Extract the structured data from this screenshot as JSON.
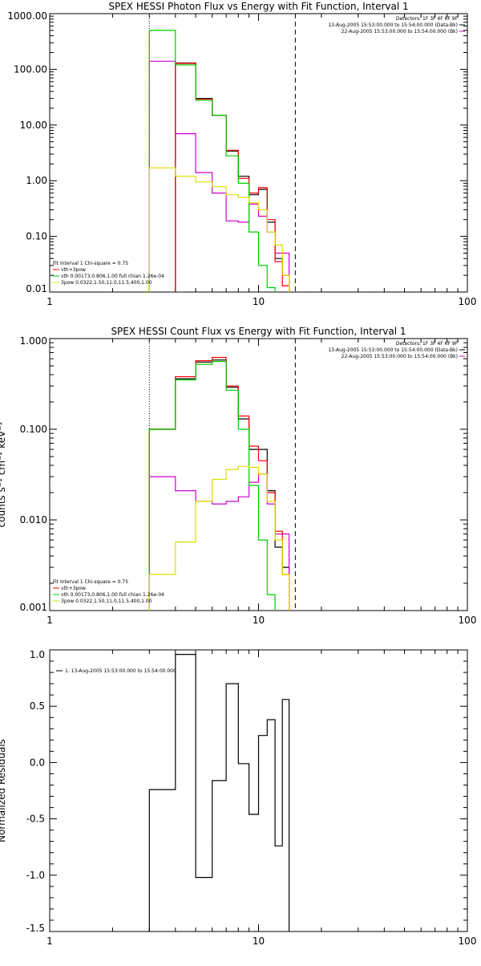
{
  "chart_data": [
    {
      "type": "line",
      "title": "SPEX HESSI Photon Flux vs Energy with Fit Function, Interval 1",
      "xlabel": "",
      "ylabel": "",
      "xscale": "log",
      "yscale": "log",
      "xlim": [
        1,
        100
      ],
      "ylim": [
        0.01,
        1000
      ],
      "xtick_labels": [
        "1",
        "10",
        "100"
      ],
      "ytick_labels": [
        "0.01",
        "0.10",
        "1.00",
        "10.00",
        "100.00",
        "1000.00"
      ],
      "header_text": [
        "Detectors: 1F 3F 4F 6F 9F",
        "13-Aug-2005 15:53:00.000 to 15:54:00.000 (Data-Bk)",
        "22-Aug-2005 15:53:00.000 to 15:54:00.000 (Bk)"
      ],
      "legend": [
        "Fit Interval 1   Chi-square = 0.75",
        "vth+3pow",
        "vth 0.00173,0.806,1.00   full chian 1.26e-04",
        "3pow 0.0322,1.50,11.0,11.5,400,1.00"
      ],
      "vlines": [
        3,
        15
      ],
      "bin_edges": [
        3.0,
        4.0,
        5.0,
        6.0,
        7.0,
        8.0,
        9.0,
        10.0,
        11.0,
        12.0,
        13.0,
        14.0,
        15.0
      ],
      "series": [
        {
          "name": "Data-Bk",
          "color": "#000000",
          "values": [
            null,
            130,
            30,
            15,
            3.4,
            1.2,
            0.56,
            0.7,
            0.18,
            0.04,
            0.02,
            null
          ]
        },
        {
          "name": "Bk",
          "color": "#cc00cc",
          "values": [
            140,
            7,
            1.4,
            0.6,
            0.19,
            0.18,
            0.38,
            0.23,
            0.12,
            0.05,
            0.05,
            null
          ]
        },
        {
          "name": "vth+3pow",
          "color": "#ff0000",
          "values": [
            null,
            128,
            29,
            15,
            3.5,
            1.1,
            0.6,
            0.75,
            0.2,
            0.035,
            0.013,
            null
          ]
        },
        {
          "name": "vth",
          "color": "#00cc00",
          "values": [
            500,
            120,
            28,
            15,
            2.8,
            0.9,
            0.12,
            0.03,
            0.012,
            null,
            null,
            null
          ]
        },
        {
          "name": "3pow",
          "color": "#dddd00",
          "values": [
            1.7,
            1.2,
            0.95,
            0.78,
            0.56,
            0.5,
            0.4,
            0.3,
            0.12,
            0.07,
            0.02,
            null
          ]
        }
      ]
    },
    {
      "type": "line",
      "title": "SPEX HESSI Count Flux vs Energy with Fit Function, Interval 1",
      "xlabel": "",
      "ylabel": "counts s⁻¹ cm⁻² keV⁻¹",
      "xscale": "log",
      "yscale": "log",
      "xlim": [
        1,
        100
      ],
      "ylim": [
        0.001,
        1
      ],
      "xtick_labels": [
        "1",
        "10",
        "100"
      ],
      "ytick_labels": [
        "0.001",
        "0.010",
        "0.100",
        "1.000"
      ],
      "header_text": [
        "Detectors: 1F 3F 4F 6F 9F",
        "13-Aug-2005 15:53:00.000 to 15:54:00.000 (Data-Bk)",
        "22-Aug-2005 15:53:00.000 to 15:54:00.000 (Bk)"
      ],
      "legend": [
        "Fit Interval 1   Chi-square = 0.75",
        "vth+3pow",
        "vth 0.00173,0.806,1.00   full chian 1.26e-04",
        "3pow 0.0322,1.50,11.0,11.5,400,1.00"
      ],
      "vlines": [
        3,
        15
      ],
      "bin_edges": [
        3.0,
        4.0,
        5.0,
        6.0,
        7.0,
        8.0,
        9.0,
        10.0,
        11.0,
        12.0,
        13.0,
        14.0,
        15.0
      ],
      "series": [
        {
          "name": "Data-Bk",
          "color": "#000000",
          "values": [
            0.1,
            0.36,
            0.55,
            0.58,
            0.29,
            0.13,
            0.06,
            0.06,
            0.021,
            0.005,
            0.003,
            null
          ]
        },
        {
          "name": "Bk",
          "color": "#cc00cc",
          "values": [
            0.03,
            0.021,
            0.016,
            0.015,
            0.016,
            0.018,
            0.026,
            0.032,
            0.015,
            0.007,
            0.007,
            null
          ]
        },
        {
          "name": "vth+3pow",
          "color": "#ff0000",
          "values": [
            0.1,
            0.38,
            0.57,
            0.62,
            0.3,
            0.14,
            0.065,
            0.045,
            0.02,
            0.0075,
            0.0025,
            null
          ]
        },
        {
          "name": "vth",
          "color": "#00cc00",
          "values": [
            0.1,
            0.35,
            0.52,
            0.56,
            0.27,
            0.1,
            0.024,
            0.006,
            0.0015,
            null,
            null,
            null
          ]
        },
        {
          "name": "3pow",
          "color": "#dddd00",
          "values": [
            0.0025,
            0.0057,
            0.016,
            0.028,
            0.036,
            0.039,
            0.038,
            0.032,
            0.016,
            0.006,
            0.0025,
            null
          ]
        }
      ]
    },
    {
      "type": "line",
      "title": "",
      "xlabel": "",
      "ylabel": "Normalized Residuals",
      "xscale": "log",
      "yscale": "linear",
      "xlim": [
        1,
        100
      ],
      "ylim": [
        -1.5,
        1.0
      ],
      "xtick_labels": [
        "1",
        "10",
        "100"
      ],
      "ytick_labels": [
        "-1.5",
        "-1.0",
        "-0.5",
        "0.0",
        "0.5",
        "1.0"
      ],
      "legend": [
        "1. 13-Aug-2005 15:53:00.000 to 15:54:00.000"
      ],
      "bin_edges": [
        3.0,
        4.0,
        5.0,
        6.0,
        7.0,
        8.0,
        9.0,
        10.0,
        11.0,
        12.0,
        13.0,
        14.0,
        15.0
      ],
      "series": [
        {
          "name": "1. 13-Aug-2005 15:53:00.000 to 15:54:00.000",
          "color": "#000000",
          "values": [
            -0.24,
            0.96,
            -1.02,
            -0.16,
            0.7,
            -0.01,
            -0.46,
            0.24,
            0.38,
            -0.74,
            0.56,
            null
          ]
        }
      ]
    }
  ]
}
